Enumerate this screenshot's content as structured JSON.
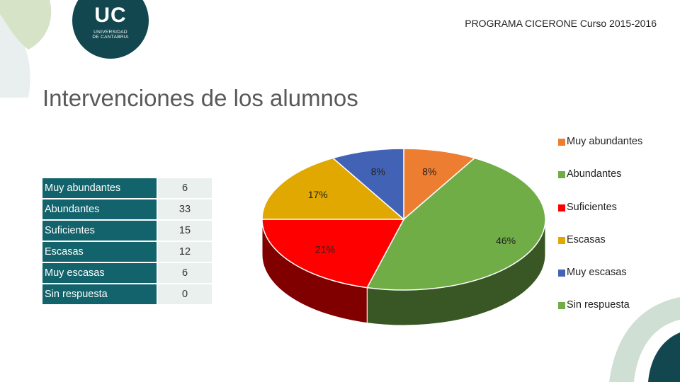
{
  "header": {
    "program": "PROGRAMA CICERONE   Curso 2015-2016"
  },
  "logo": {
    "mark": "UC",
    "line1": "UNIVERSIDAD",
    "line2": "DE CANTABRIA"
  },
  "title": "Intervenciones de los alumnos",
  "table": {
    "rows": [
      {
        "category": "Muy abundantes",
        "value": "6"
      },
      {
        "category": "Abundantes",
        "value": "33"
      },
      {
        "category": "Suficientes",
        "value": "15"
      },
      {
        "category": "Escasas",
        "value": "12"
      },
      {
        "category": "Muy escasas",
        "value": "6"
      },
      {
        "category": "Sin respuesta",
        "value": "0"
      }
    ]
  },
  "chart_data": {
    "type": "pie",
    "categories": [
      "Muy abundantes",
      "Abundantes",
      "Suficientes",
      "Escasas",
      "Muy escasas",
      "Sin respuesta"
    ],
    "values": [
      6,
      33,
      15,
      12,
      6,
      0
    ],
    "data_labels": [
      "8%",
      "46%",
      "21%",
      "17%",
      "8%",
      ""
    ],
    "colors": [
      "#ed7d31",
      "#70ad47",
      "#ff0000",
      "#e0a800",
      "#4263b5",
      "#70ad47"
    ],
    "legend_position": "right",
    "style": "3d"
  }
}
